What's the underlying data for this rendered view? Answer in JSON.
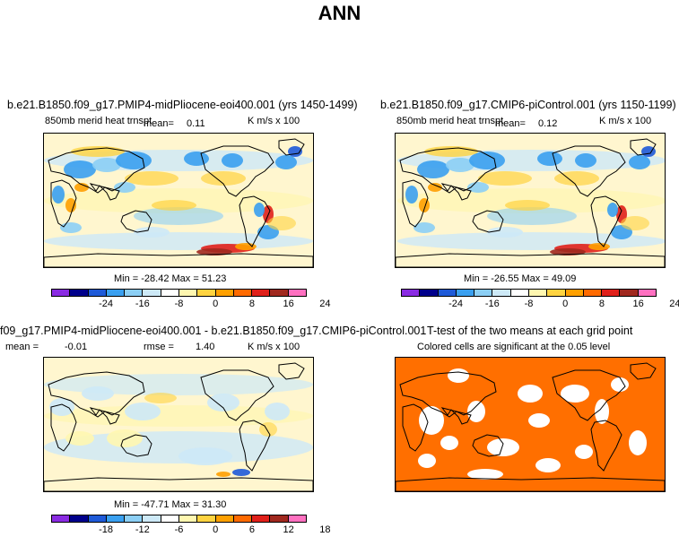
{
  "title": "ANN",
  "colors": {
    "palette": [
      "#8a2be2",
      "#00008b",
      "#1e5ad8",
      "#3aa0f0",
      "#8ccff5",
      "#cde9f7",
      "#ffffff",
      "#fff7b0",
      "#ffd340",
      "#ffa000",
      "#ff6a00",
      "#e0201a",
      "#a0281e",
      "#ff70c0"
    ],
    "neutral": "#fffbe6",
    "ocean_base": "#fff6cf",
    "sig_color": "#ff6f00",
    "land_line": "#000000"
  },
  "panels": {
    "p1": {
      "title": "b.e21.B1850.f09_g17.PMIP4-midPliocene-eoi400.001 (yrs 1450-1499)",
      "variable": "850mb merid heat trnspt",
      "mean_label": "mean=",
      "mean_value": "0.11",
      "units": "K m/s x 100",
      "minmax": "Min = -28.42 Max =  51.23",
      "ticks": [
        "-24",
        "-16",
        "-8",
        "0",
        "8",
        "16",
        "24"
      ]
    },
    "p2": {
      "title": "b.e21.B1850.f09_g17.CMIP6-piControl.001 (yrs 1150-1199)",
      "variable": "850mb merid heat trnspt",
      "mean_label": "mean=",
      "mean_value": "0.12",
      "units": "K m/s x 100",
      "minmax": "Min = -26.55 Max =  49.09",
      "ticks": [
        "-24",
        "-16",
        "-8",
        "0",
        "8",
        "16",
        "24"
      ]
    },
    "p3": {
      "title": "f09_g17.PMIP4-midPliocene-eoi400.001 - b.e21.B1850.f09_g17.CMIP6-piControl.001",
      "mean_label": "mean =",
      "mean_value": "-0.01",
      "rmse_label": "rmse =",
      "rmse_value": "1.40",
      "units": "K m/s x 100",
      "minmax": "Min = -47.71 Max =  31.30",
      "ticks": [
        "-18",
        "-12",
        "-6",
        "0",
        "6",
        "12",
        "18"
      ]
    },
    "p4": {
      "title": "T-test of the two means at each grid point",
      "subtitle": "Colored cells are significant at the 0.05 level"
    }
  }
}
